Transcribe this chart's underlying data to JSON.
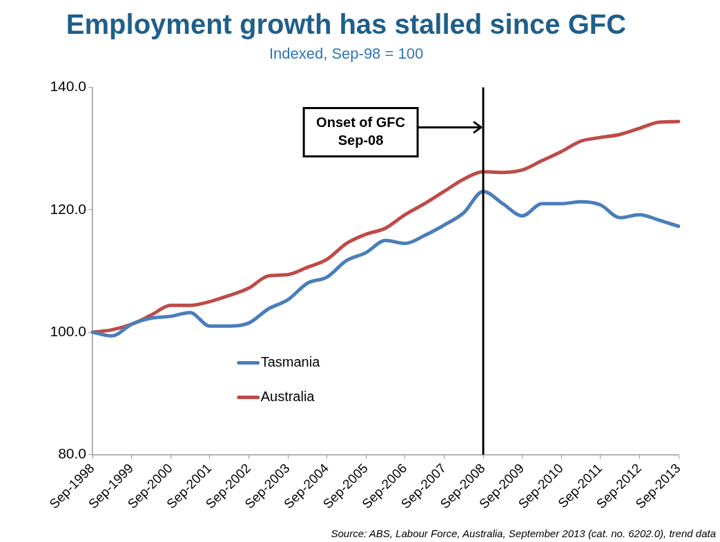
{
  "chart_data": {
    "type": "line",
    "title": "Employment growth has stalled since GFC",
    "subtitle": "Indexed, Sep-98 = 100",
    "categories": [
      "Sep-1998",
      null,
      "Sep-1999",
      null,
      "Sep-2000",
      null,
      "Sep-2001",
      null,
      "Sep-2002",
      null,
      "Sep-2003",
      null,
      "Sep-2004",
      null,
      "Sep-2005",
      null,
      "Sep-2006",
      null,
      "Sep-2007",
      null,
      "Sep-2008",
      null,
      "Sep-2009",
      null,
      "Sep-2010",
      null,
      "Sep-2011",
      null,
      "Sep-2012",
      null,
      "Sep-2013"
    ],
    "series": [
      {
        "name": "Tasmania",
        "color": "#4a7ebb",
        "values": [
          100,
          99.4,
          101.3,
          102.3,
          102.6,
          103.2,
          101.0,
          101.0,
          101.5,
          103.8,
          105.3,
          108.0,
          109.0,
          111.7,
          113.0,
          115.0,
          114.5,
          115.8,
          117.5,
          119.5,
          123.0,
          121.0,
          119.0,
          121.0,
          121.0,
          121.3,
          120.8,
          118.7,
          119.2,
          118.3,
          117.3
        ]
      },
      {
        "name": "Australia",
        "color": "#be4b48",
        "values": [
          100,
          100.4,
          101.3,
          102.8,
          104.4,
          104.4,
          105.0,
          106.0,
          107.2,
          109.2,
          109.4,
          110.6,
          111.9,
          114.5,
          116.0,
          117.0,
          119.2,
          121.0,
          123.0,
          125.0,
          126.2,
          126.1,
          126.5,
          128.0,
          129.5,
          131.2,
          131.8,
          132.3,
          133.3,
          134.3,
          134.4
        ]
      }
    ],
    "ylim": [
      80,
      140
    ],
    "yticks": [
      {
        "value": 80,
        "label": "80.0"
      },
      {
        "value": 100,
        "label": "100.0"
      },
      {
        "value": 120,
        "label": "120.0"
      },
      {
        "value": 140,
        "label": "140.0"
      }
    ],
    "ref_lines": [
      {
        "axis": "x",
        "value": "Sep-2008",
        "label": "Onset of GFC\nSep-08",
        "color": "#000000"
      }
    ],
    "annotations": [
      "Source: ABS, Labour Force, Australia, September 2013 (cat. no. 6202.0), trend data"
    ],
    "grid": false,
    "legend": "bottom left",
    "marker": "none",
    "line_style": "solid"
  }
}
